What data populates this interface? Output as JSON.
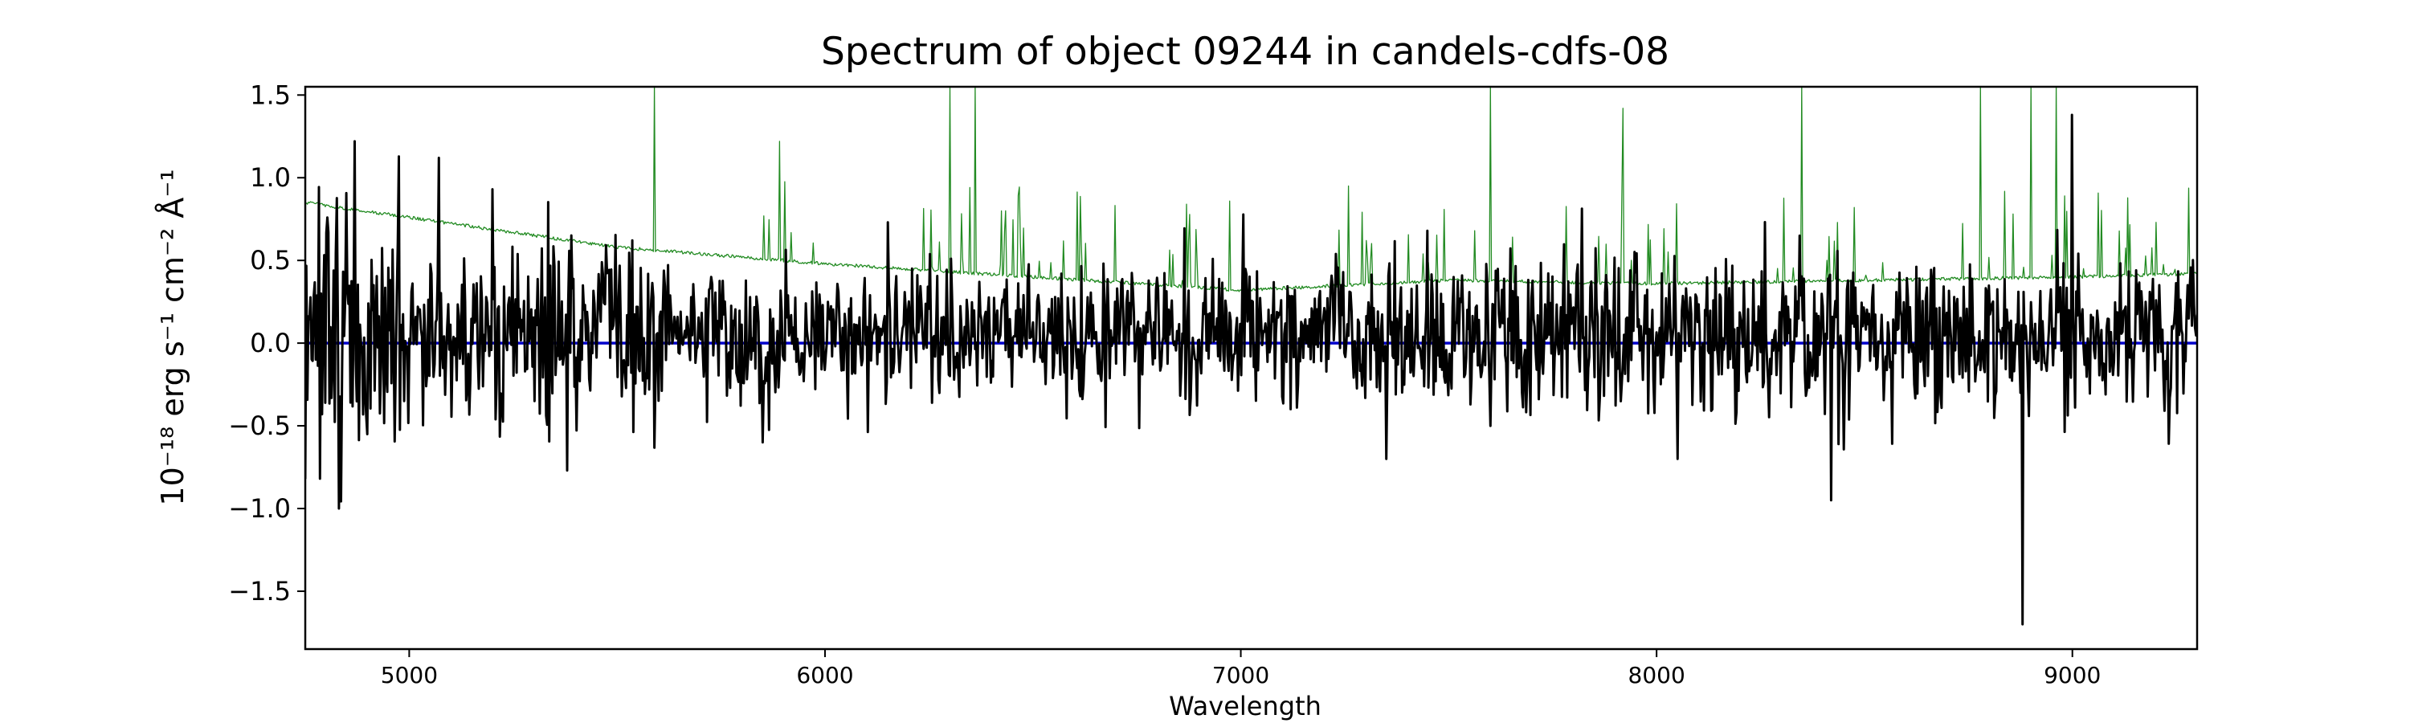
{
  "chart_data": {
    "type": "line",
    "title": "Spectrum of object 09244 in candels-cdfs-08",
    "xlabel": "Wavelength",
    "ylabel": "10⁻¹⁸ erg s⁻¹ cm⁻² Å⁻¹",
    "xlim": [
      4750,
      9300
    ],
    "ylim": [
      -1.85,
      1.55
    ],
    "x_ticks": [
      5000,
      6000,
      7000,
      8000,
      9000
    ],
    "y_ticks": [
      1.5,
      1.0,
      0.5,
      0.0,
      -0.5,
      -1.0,
      -1.5
    ],
    "y_tick_labels": [
      "1.5",
      "1.0",
      "0.5",
      "0.0",
      "−0.5",
      "−1.0",
      "−1.5"
    ],
    "grid": false,
    "series": [
      {
        "role": "error",
        "color": "#228b22",
        "continuum": [
          [
            4750,
            0.85
          ],
          [
            5000,
            0.76
          ],
          [
            5500,
            0.58
          ],
          [
            6000,
            0.48
          ],
          [
            6500,
            0.4
          ],
          [
            7000,
            0.32
          ],
          [
            7500,
            0.38
          ],
          [
            8000,
            0.36
          ],
          [
            8500,
            0.38
          ],
          [
            9000,
            0.4
          ],
          [
            9300,
            0.42
          ]
        ],
        "noise_peaks": [
          [
            5590,
            1.55
          ],
          [
            5890,
            1.22
          ],
          [
            6300,
            1.55
          ],
          [
            6360,
            1.55
          ],
          [
            6870,
            0.84
          ],
          [
            7260,
            0.95
          ],
          [
            7600,
            1.55
          ],
          [
            7920,
            1.42
          ],
          [
            8350,
            1.55
          ],
          [
            8780,
            1.55
          ],
          [
            8900,
            1.55
          ],
          [
            8960,
            1.55
          ]
        ]
      },
      {
        "role": "zero",
        "color": "#0000cc",
        "points": [
          [
            4750,
            0.0
          ],
          [
            9300,
            0.0
          ]
        ]
      },
      {
        "role": "flux",
        "color": "#000000",
        "anchors": [
          [
            4790,
            -0.43
          ],
          [
            4830,
            -1.0
          ],
          [
            4870,
            1.22
          ],
          [
            4900,
            -0.55
          ],
          [
            5070,
            1.12
          ],
          [
            5200,
            0.93
          ],
          [
            5380,
            -0.77
          ],
          [
            5850,
            -0.6
          ],
          [
            6150,
            0.73
          ],
          [
            7350,
            -0.7
          ],
          [
            7600,
            -0.5
          ],
          [
            8050,
            -0.7
          ],
          [
            8420,
            -0.95
          ],
          [
            8880,
            -1.7
          ],
          [
            9000,
            1.38
          ]
        ]
      }
    ]
  }
}
